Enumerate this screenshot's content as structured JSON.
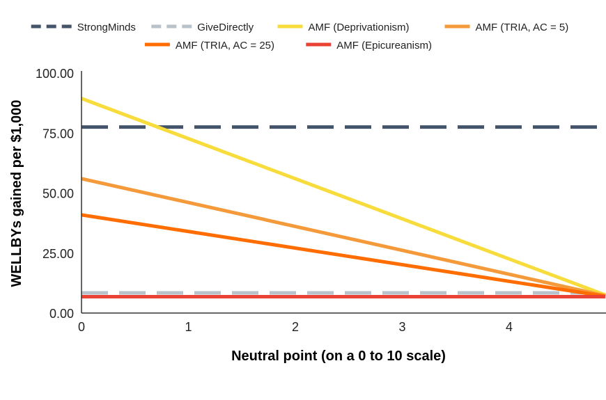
{
  "chart_data": {
    "type": "line",
    "title": "",
    "xlabel": "Neutral point (on a 0 to 10 scale)",
    "ylabel": "WELLBYs gained per $1,000",
    "xlim": [
      0,
      4.9
    ],
    "ylim": [
      0,
      100
    ],
    "x_ticks": [
      "0",
      "1",
      "2",
      "3",
      "4"
    ],
    "y_ticks": [
      "0.00",
      "25.00",
      "50.00",
      "75.00",
      "100.00"
    ],
    "grid": false,
    "legend_position": "top",
    "series": [
      {
        "name": "StrongMinds",
        "color": "#44546a",
        "dash": true,
        "x": [
          0,
          4.9
        ],
        "y": [
          77.5,
          77.5
        ]
      },
      {
        "name": "GiveDirectly",
        "color": "#b8c2cb",
        "dash": true,
        "x": [
          0,
          4.9
        ],
        "y": [
          8.4,
          8.4
        ]
      },
      {
        "name": "AMF (Deprivationism)",
        "color": "#f7dc3c",
        "dash": false,
        "x": [
          0,
          4.9
        ],
        "y": [
          89.4,
          7.5
        ]
      },
      {
        "name": "AMF (TRIA, AC = 5)",
        "color": "#f59a3a",
        "dash": false,
        "x": [
          0,
          4.9
        ],
        "y": [
          56.0,
          7.2
        ]
      },
      {
        "name": "AMF (TRIA, AC = 25)",
        "color": "#ff6d00",
        "dash": false,
        "x": [
          0,
          4.9
        ],
        "y": [
          40.9,
          7.0
        ]
      },
      {
        "name": "AMF (Epicureanism)",
        "color": "#ea4335",
        "dash": false,
        "x": [
          0,
          4.9
        ],
        "y": [
          6.8,
          6.8
        ]
      }
    ]
  }
}
